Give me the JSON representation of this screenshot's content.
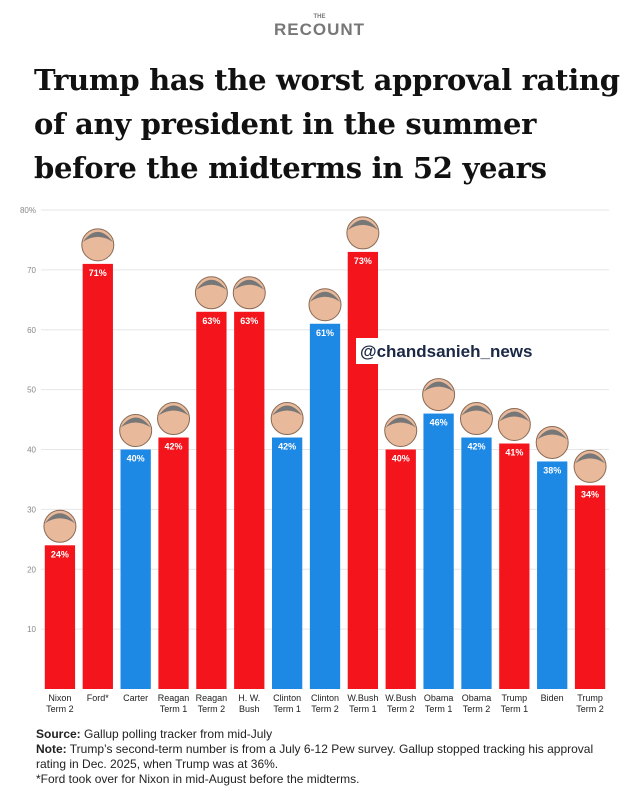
{
  "logo": {
    "small": "THE",
    "big": "RECOUNT"
  },
  "chart_data": {
    "type": "bar",
    "title": "Trump has the worst approval rating of any president in the summer before the midterms in 52 years",
    "categories": [
      "Nixon Term 2",
      "Ford*",
      "Carter",
      "Reagan Term 1",
      "Reagan Term 2",
      "H. W. Bush",
      "Clinton Term 1",
      "Clinton Term 2",
      "W.Bush Term 1",
      "W.Bush Term 2",
      "Obama Term 1",
      "Obama Term 2",
      "Trump Term 1",
      "Biden",
      "Trump Term 2"
    ],
    "values": [
      24,
      71,
      40,
      42,
      63,
      63,
      42,
      61,
      73,
      40,
      46,
      42,
      41,
      38,
      34
    ],
    "value_labels": [
      "24%",
      "71%",
      "40%",
      "42%",
      "63%",
      "63%",
      "42%",
      "61%",
      "73%",
      "40%",
      "46%",
      "42%",
      "41%",
      "38%",
      "34%"
    ],
    "colors": [
      "#f4141c",
      "#f4141c",
      "#1e88e5",
      "#f4141c",
      "#f4141c",
      "#f4141c",
      "#1e88e5",
      "#1e88e5",
      "#f4141c",
      "#f4141c",
      "#1e88e5",
      "#1e88e5",
      "#f4141c",
      "#1e88e5",
      "#f4141c"
    ],
    "ylim": [
      0,
      80
    ],
    "yticks": [
      10,
      20,
      30,
      40,
      50,
      60,
      70,
      {
        "value": 80,
        "label": "80%"
      }
    ],
    "grid": true,
    "annotation": "@chandsanieh_news"
  },
  "footer": [
    {
      "label": "Source:",
      "text": "Gallup polling tracker from mid-July"
    },
    {
      "label": "Note:",
      "text": "Trump’s second-term number is from a July 6-12 Pew survey. Gallup stopped tracking his approval rating in Dec. 2025, when Trump was at 36%."
    },
    {
      "label": "",
      "text": "*Ford took over for Nixon in mid-August before the midterms."
    }
  ]
}
